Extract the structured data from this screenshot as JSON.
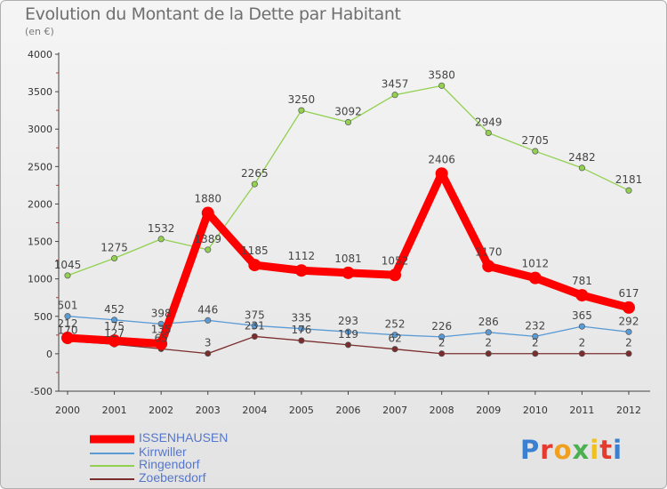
{
  "title": "Evolution du Montant de la Dette par Habitant",
  "subtitle": "(en €)",
  "logo_text": "Proxiti",
  "chart_data": {
    "type": "line",
    "title": "Evolution du Montant de la Dette par Habitant",
    "subtitle": "(en €)",
    "xlabel": "",
    "ylabel": "",
    "x": [
      "2000",
      "2001",
      "2002",
      "2003",
      "2004",
      "2005",
      "2006",
      "2007",
      "2008",
      "2009",
      "2010",
      "2011",
      "2012"
    ],
    "yticks": [
      "-500",
      "0",
      "500",
      "1000",
      "1500",
      "2000",
      "2500",
      "3000",
      "3500",
      "4000"
    ],
    "ylim": [
      -500,
      4000
    ],
    "grid": false,
    "legend_position": "bottom-left",
    "series": [
      {
        "name": "ISSENHAUSEN",
        "color": "#ff0000",
        "values": [
          212,
          175,
          135,
          1880,
          1185,
          1112,
          1081,
          1052,
          2406,
          1170,
          1012,
          781,
          617
        ],
        "labels": [
          "212",
          "175",
          "135",
          "1880",
          "1185",
          "1112",
          "1081",
          "1052",
          "2406",
          "1170",
          "1012",
          "781",
          "617"
        ]
      },
      {
        "name": "Kirrwiller",
        "color": "#5b9bd5",
        "values": [
          501,
          452,
          398,
          446,
          375,
          335,
          293,
          252,
          226,
          286,
          232,
          365,
          292
        ],
        "labels": [
          "501",
          "452",
          "398",
          "446",
          "375",
          "335",
          "293",
          "252",
          "226",
          "286",
          "232",
          "365",
          "292"
        ]
      },
      {
        "name": "Ringendorf",
        "color": "#92d050",
        "values": [
          1045,
          1275,
          1532,
          1389,
          2265,
          3250,
          3092,
          3457,
          3580,
          2949,
          2705,
          2482,
          2181
        ],
        "labels": [
          "1045",
          "1275",
          "1532",
          "1389",
          "2265",
          "3250",
          "3092",
          "3457",
          "3580",
          "2949",
          "2705",
          "2482",
          "2181"
        ]
      },
      {
        "name": "Zoebersdorf",
        "color": "#7b2c2c",
        "values": [
          170,
          127,
          65,
          3,
          231,
          176,
          119,
          62,
          2,
          2,
          2,
          2,
          2
        ],
        "labels": [
          "170",
          "127",
          "65",
          "3",
          "231",
          "176",
          "119",
          "62",
          "2",
          "2",
          "2",
          "2",
          "2"
        ]
      }
    ]
  }
}
